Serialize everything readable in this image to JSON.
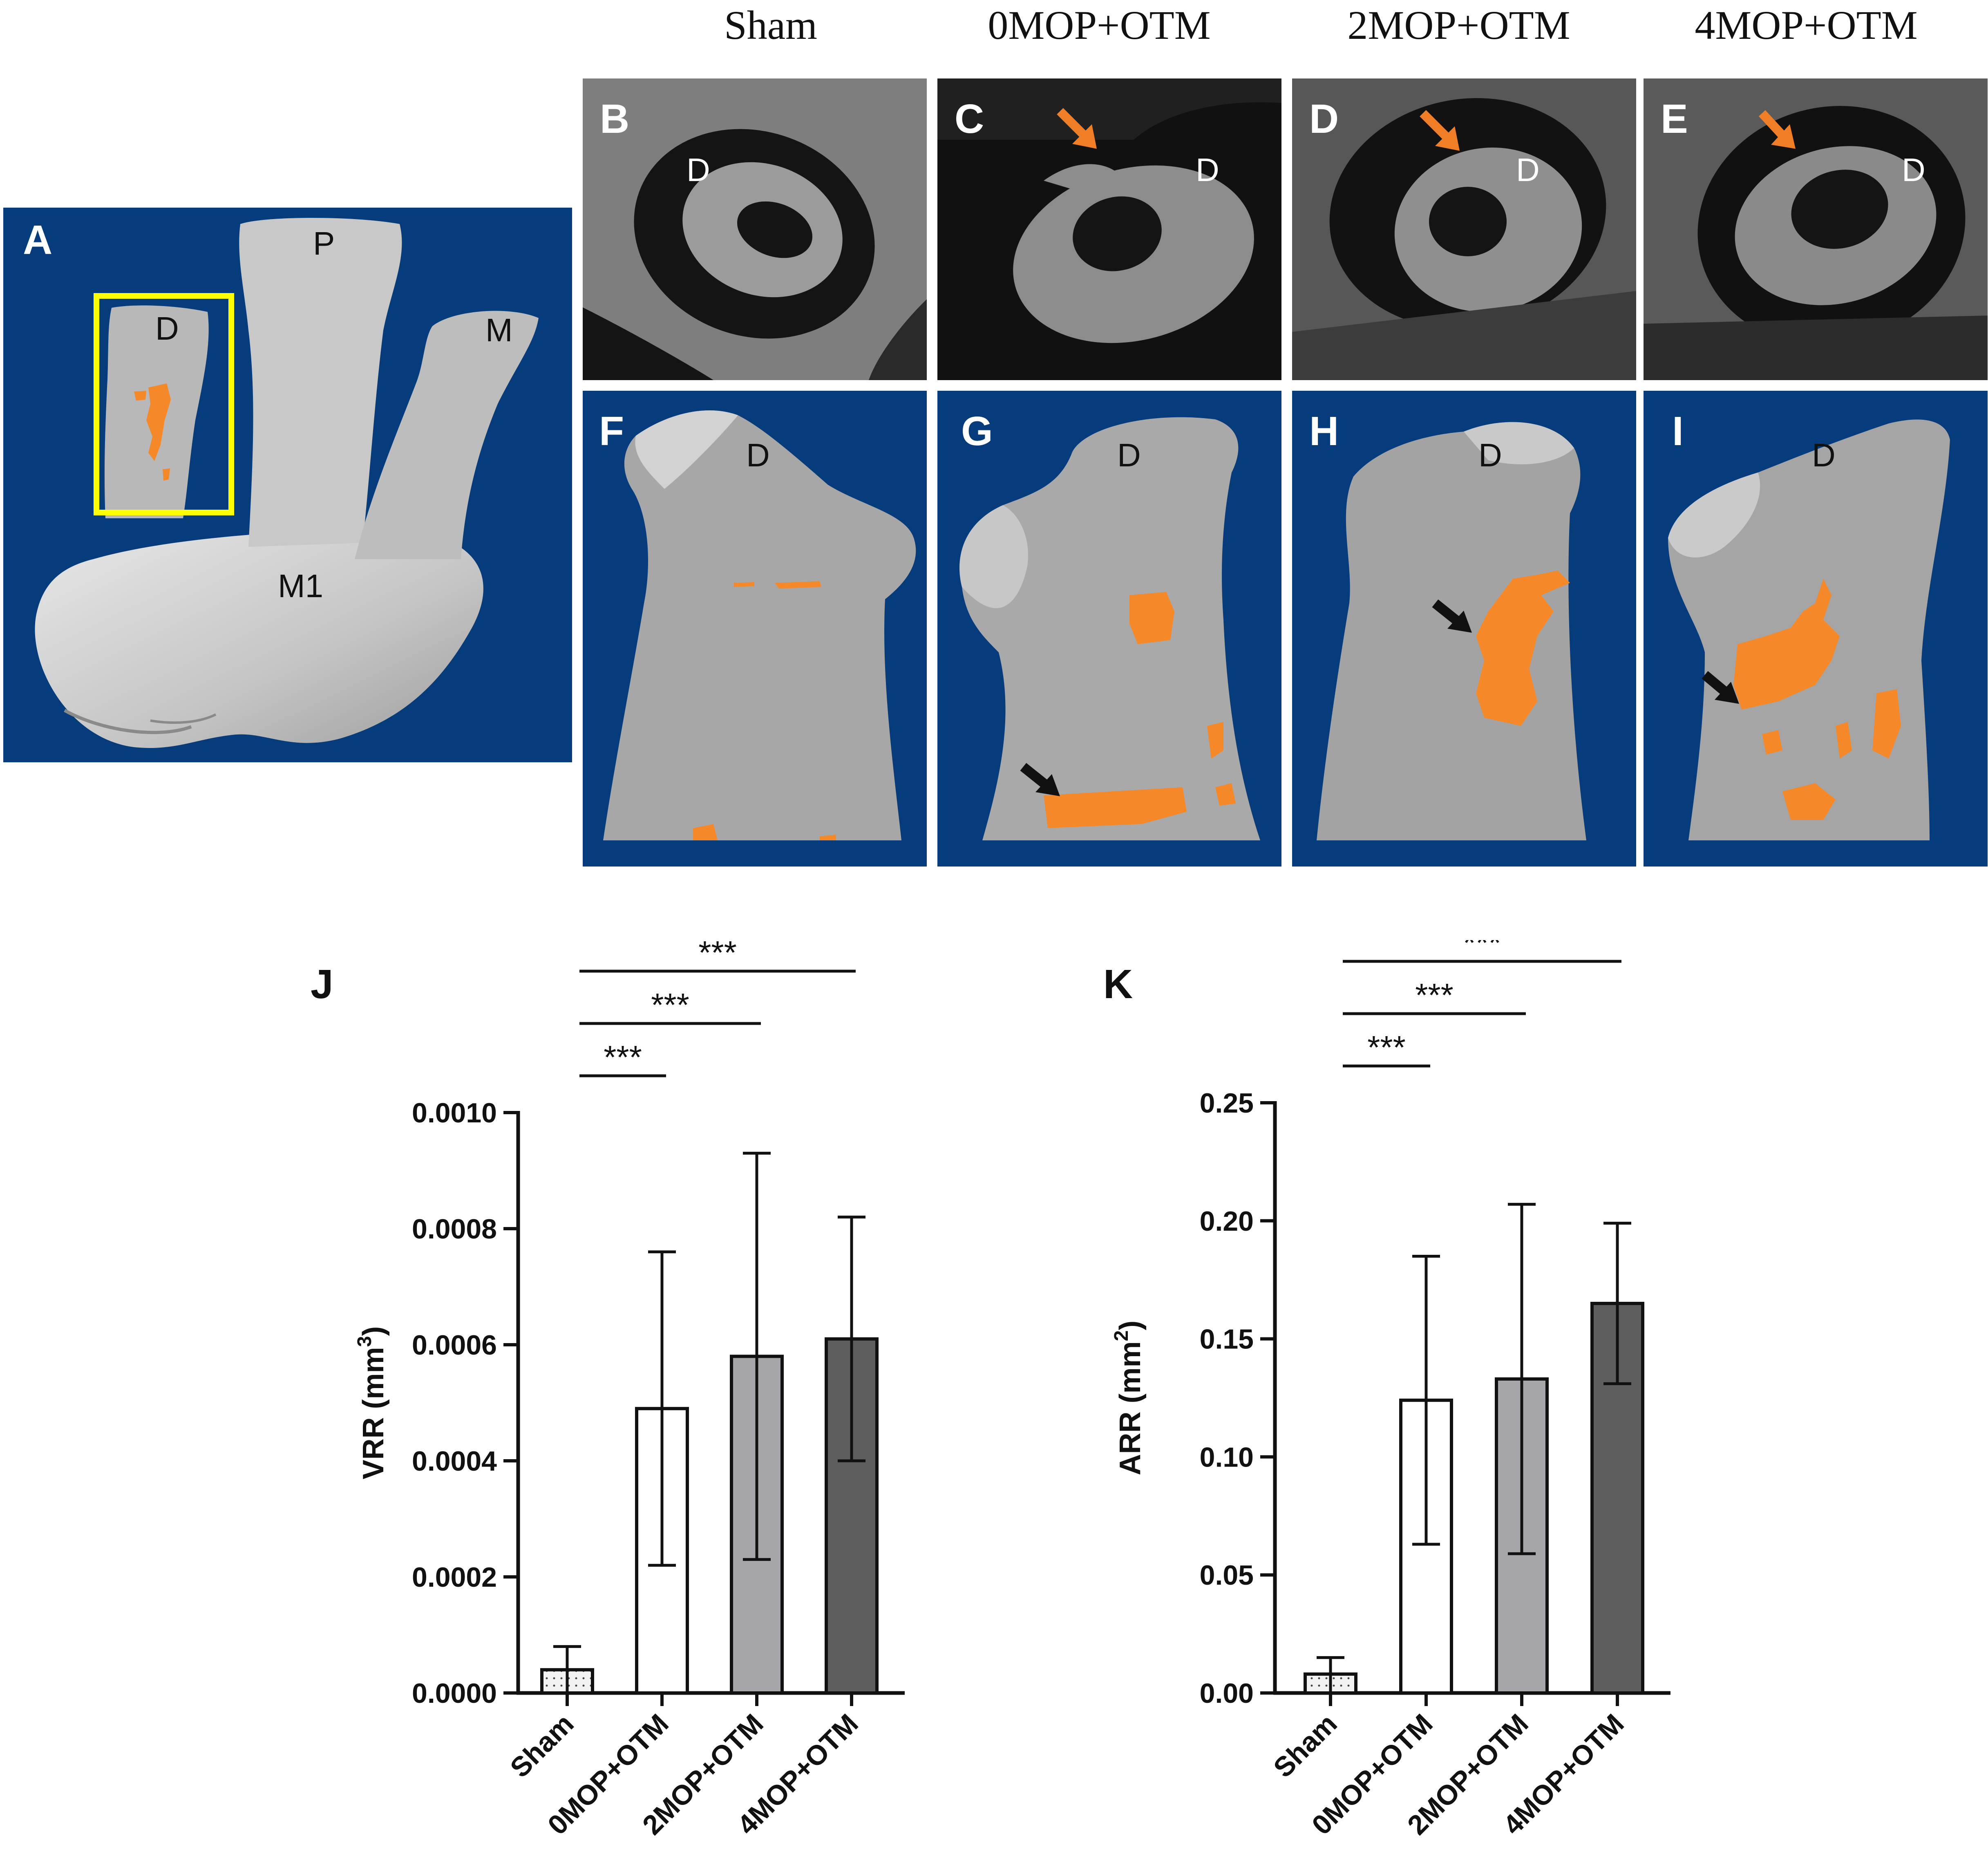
{
  "column_headers": [
    "Sham",
    "0MOP+OTM",
    "2MOP+OTM",
    "4MOP+OTM"
  ],
  "panel_a": {
    "letter": "A",
    "labels": {
      "distal": "D",
      "palatal": "P",
      "mesial": "M",
      "molar": "M1"
    }
  },
  "ct_panels": [
    {
      "letter": "B",
      "root_label": "D",
      "arrow": false
    },
    {
      "letter": "C",
      "root_label": "D",
      "arrow": true
    },
    {
      "letter": "D",
      "root_label": "D",
      "arrow": true
    },
    {
      "letter": "E",
      "root_label": "D",
      "arrow": true
    }
  ],
  "render_panels": [
    {
      "letter": "F",
      "root_label": "D"
    },
    {
      "letter": "G",
      "root_label": "D"
    },
    {
      "letter": "H",
      "root_label": "D"
    },
    {
      "letter": "I",
      "root_label": "D"
    }
  ],
  "colors": {
    "background_blue": "#063c7c",
    "resorption_orange": "#f5892a",
    "highlight_yellow": "#ffff00",
    "bar_white": "#ffffff",
    "bar_light_gray": "#a6a6aa",
    "bar_dark_gray": "#5e5e5e"
  },
  "chart_data": [
    {
      "panel": "J",
      "type": "bar",
      "categories": [
        "Sham",
        "0MOP+OTM",
        "2MOP+OTM",
        "4MOP+OTM"
      ],
      "values": [
        4e-05,
        0.00049,
        0.00058,
        0.00061
      ],
      "error_upper": [
        8e-05,
        0.00076,
        0.00093,
        0.00082
      ],
      "error_lower": [
        0.0,
        0.00022,
        0.00023,
        0.0004
      ],
      "ylabel": "VRR (mm",
      "ylabel_sup": "3",
      "ylabel_end": ")",
      "ylim": [
        0,
        0.001
      ],
      "yticks": [
        "0.0000",
        "0.0002",
        "0.0004",
        "0.0006",
        "0.0008",
        "0.0010"
      ],
      "ytick_values": [
        0,
        0.0002,
        0.0004,
        0.0006,
        0.0008,
        0.001
      ],
      "significance": [
        {
          "from": "Sham",
          "to": "0MOP+OTM",
          "label": "***"
        },
        {
          "from": "Sham",
          "to": "2MOP+OTM",
          "label": "***"
        },
        {
          "from": "Sham",
          "to": "4MOP+OTM",
          "label": "***"
        }
      ]
    },
    {
      "panel": "K",
      "type": "bar",
      "categories": [
        "Sham",
        "0MOP+OTM",
        "2MOP+OTM",
        "4MOP+OTM"
      ],
      "values": [
        0.008,
        0.124,
        0.133,
        0.165
      ],
      "error_upper": [
        0.015,
        0.185,
        0.207,
        0.199
      ],
      "error_lower": [
        0.0,
        0.063,
        0.059,
        0.131
      ],
      "ylabel": "ARR (mm",
      "ylabel_sup": "2",
      "ylabel_end": ")",
      "ylim": [
        0,
        0.25
      ],
      "yticks": [
        "0.00",
        "0.05",
        "0.10",
        "0.15",
        "0.20",
        "0.25"
      ],
      "ytick_values": [
        0,
        0.05,
        0.1,
        0.15,
        0.2,
        0.25
      ],
      "significance": [
        {
          "from": "Sham",
          "to": "0MOP+OTM",
          "label": "***"
        },
        {
          "from": "Sham",
          "to": "2MOP+OTM",
          "label": "***"
        },
        {
          "from": "Sham",
          "to": "4MOP+OTM",
          "label": "***"
        }
      ]
    }
  ]
}
